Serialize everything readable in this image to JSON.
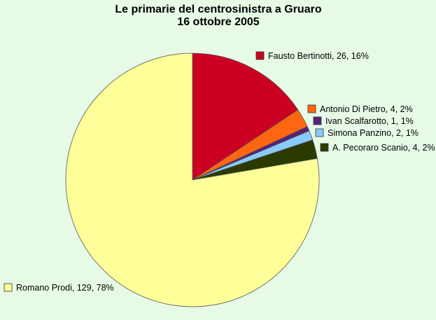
{
  "chart_data": {
    "type": "pie",
    "title": "Le primarie del centrosinistra a Gruaro",
    "subtitle": "16 ottobre 2005",
    "slices": [
      {
        "name": "Fausto Bertinotti",
        "value": 26,
        "percent": "16%",
        "color": "#cc0022"
      },
      {
        "name": "Antonio Di Pietro",
        "value": 4,
        "percent": "2%",
        "color": "#ff6611"
      },
      {
        "name": "Ivan Scalfarotto",
        "value": 1,
        "percent": "1%",
        "color": "#552277"
      },
      {
        "name": "Simona Panzino",
        "value": 2,
        "percent": "1%",
        "color": "#88ccff"
      },
      {
        "name": "A. Pecoraro Scanio",
        "value": 4,
        "percent": "2%",
        "color": "#2a3a00"
      },
      {
        "name": "Romano Prodi",
        "value": 129,
        "percent": "78%",
        "color": "#ffff99"
      }
    ],
    "background": "#e6fae6",
    "edge_color": "#555555"
  }
}
